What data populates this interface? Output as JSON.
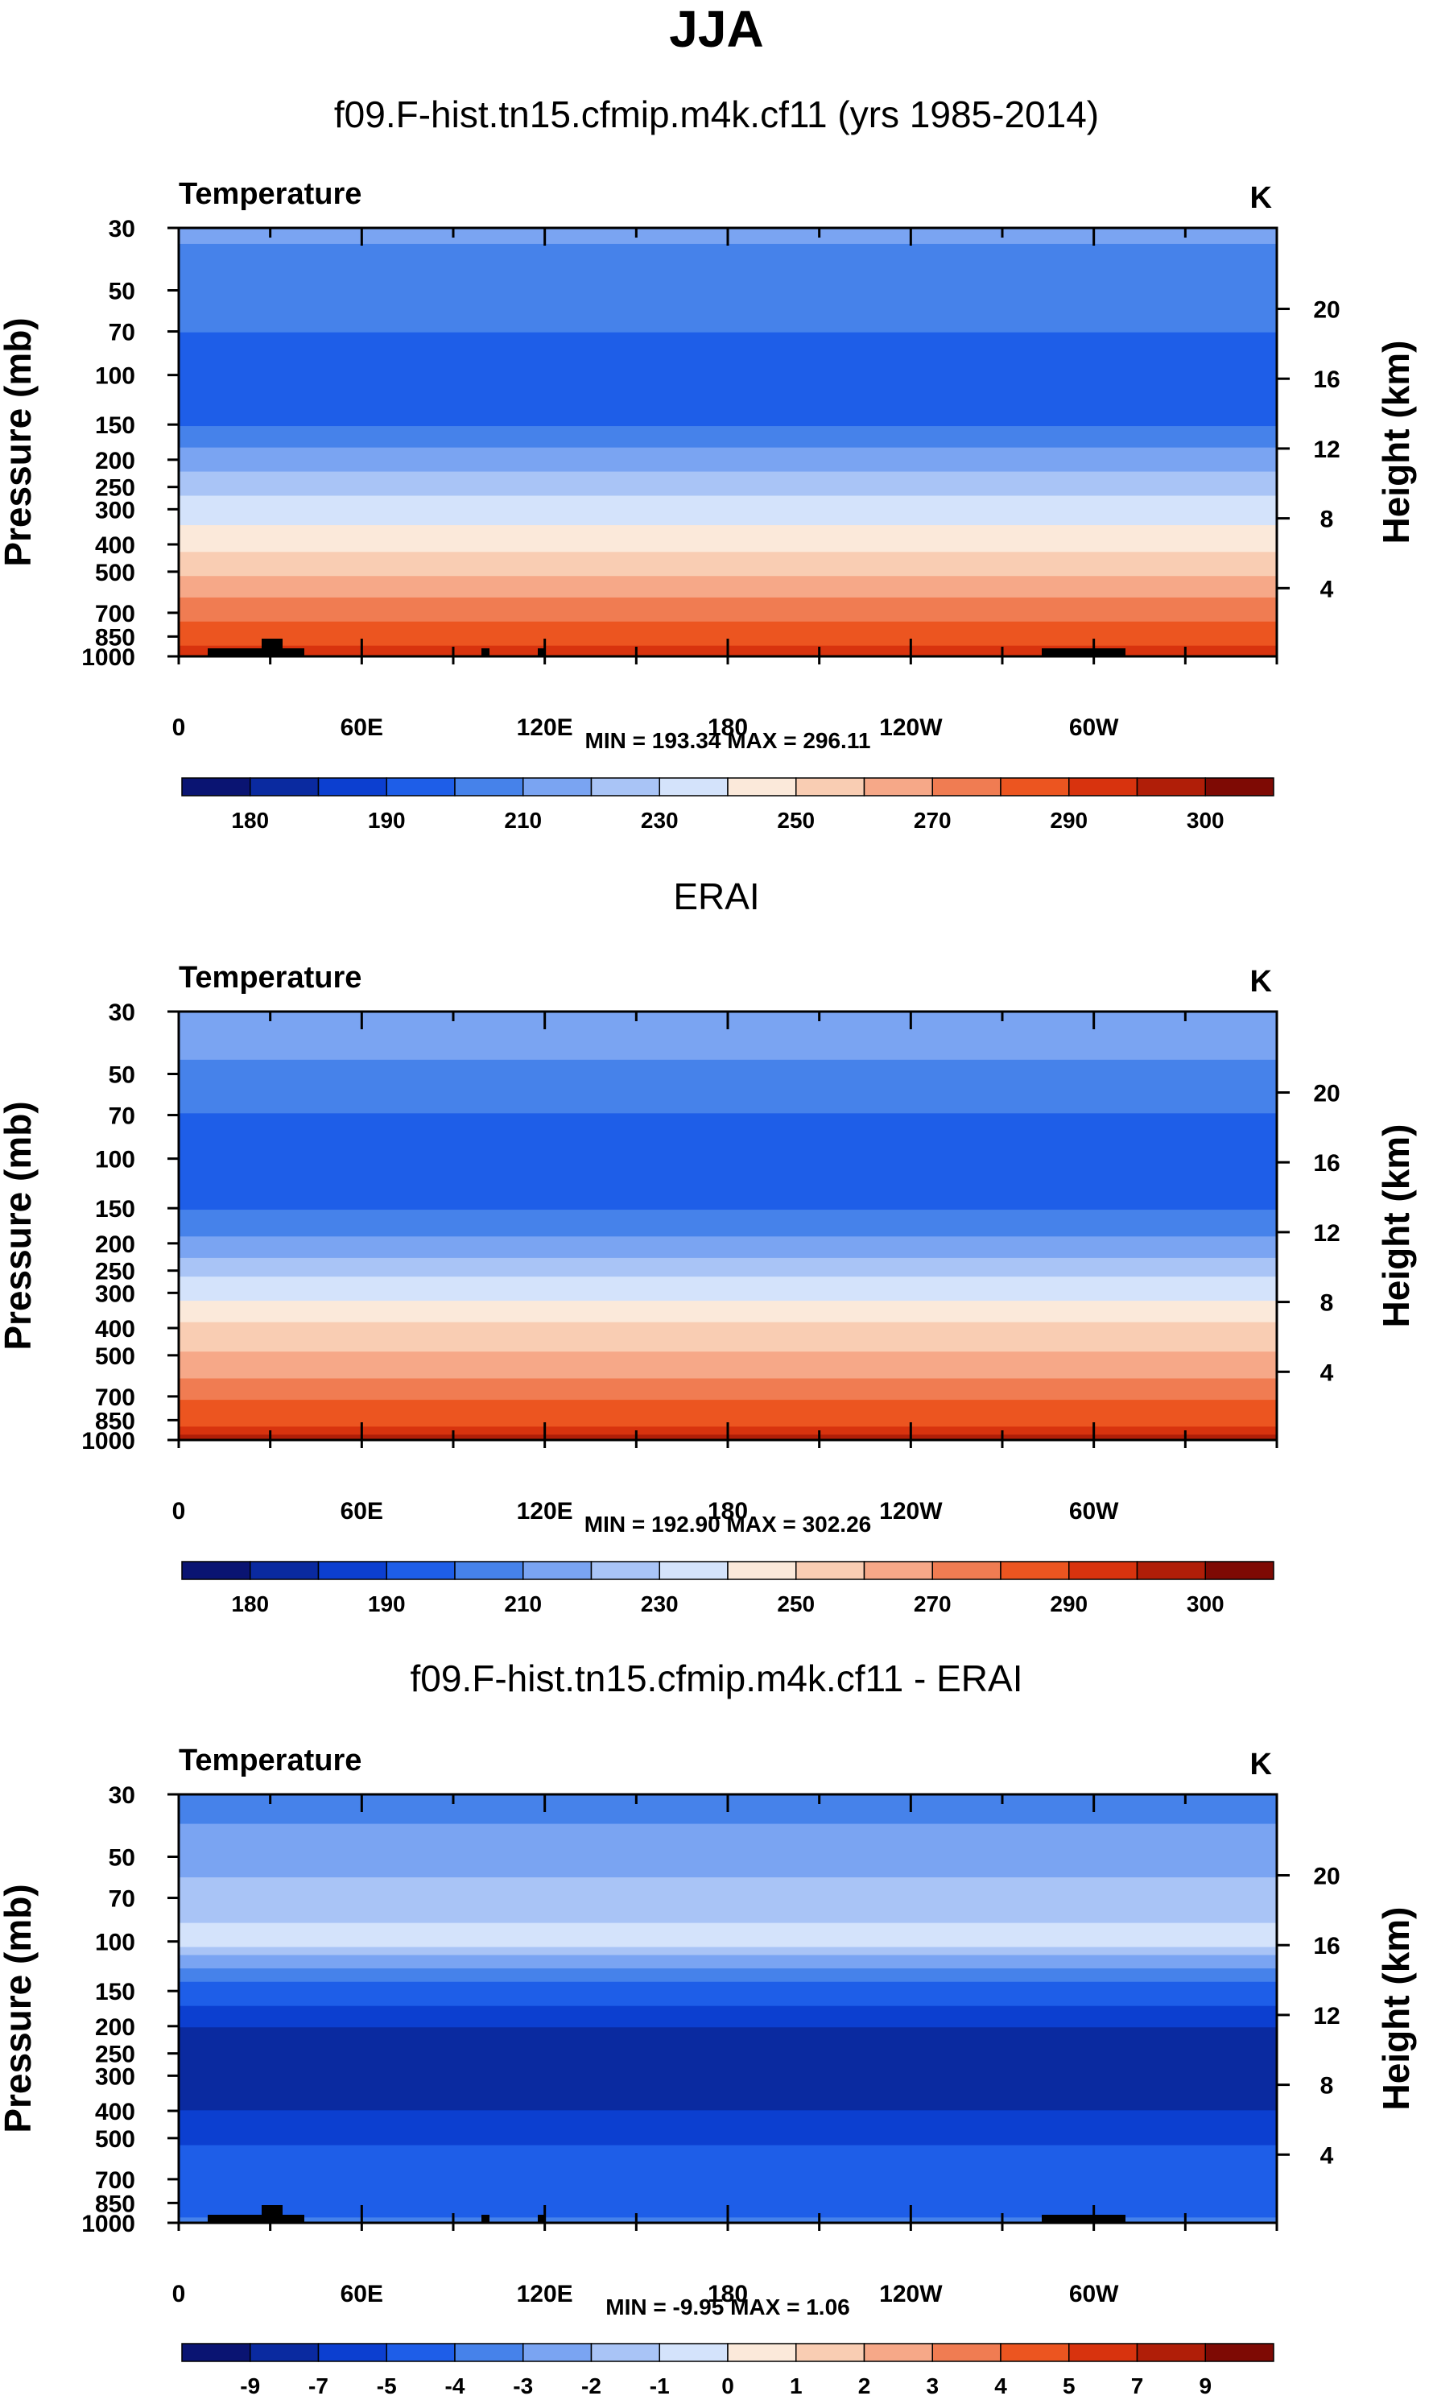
{
  "figure_title": "JJA",
  "chart_data": [
    {
      "type": "heatmap",
      "panel_title": "f09.F-hist.tn15.cfmip.m4k.cf11 (yrs 1985-2014)",
      "variable": "Temperature",
      "units": "K",
      "ylabel": "Pressure (mb)",
      "ylabel_right": "Height (km)",
      "pressure_ticks": [
        "30",
        "50",
        "70",
        "100",
        "150",
        "200",
        "250",
        "300",
        "400",
        "500",
        "700",
        "850",
        "1000"
      ],
      "height_ticks": [
        "20",
        "16",
        "12",
        "8",
        "4"
      ],
      "x_ticks": [
        "0",
        "60E",
        "120E",
        "180",
        "120W",
        "60W"
      ],
      "min_max": "MIN = 193.34   MAX = 296.11",
      "colorbar_labels": [
        "180",
        "190",
        "210",
        "230",
        "250",
        "270",
        "290",
        "300"
      ],
      "colorbar_levels": [
        180,
        185,
        190,
        200,
        210,
        220,
        230,
        240,
        250,
        260,
        270,
        280,
        290,
        295,
        300
      ],
      "profile": [
        [
          30,
          212
        ],
        [
          40,
          207
        ],
        [
          60,
          205
        ],
        [
          80,
          195
        ],
        [
          120,
          193.5
        ],
        [
          160,
          202
        ],
        [
          190,
          214
        ],
        [
          230,
          222
        ],
        [
          270,
          231
        ],
        [
          320,
          238
        ],
        [
          380,
          246
        ],
        [
          460,
          254
        ],
        [
          560,
          265
        ],
        [
          650,
          273
        ],
        [
          750,
          280
        ],
        [
          830,
          285
        ],
        [
          900,
          289
        ],
        [
          960,
          293
        ],
        [
          1000,
          296
        ]
      ],
      "terrain": true
    },
    {
      "type": "heatmap",
      "panel_title": "ERAI",
      "variable": "Temperature",
      "units": "K",
      "ylabel": "Pressure (mb)",
      "ylabel_right": "Height (km)",
      "pressure_ticks": [
        "30",
        "50",
        "70",
        "100",
        "150",
        "200",
        "250",
        "300",
        "400",
        "500",
        "700",
        "850",
        "1000"
      ],
      "height_ticks": [
        "20",
        "16",
        "12",
        "8",
        "4"
      ],
      "x_ticks": [
        "0",
        "60E",
        "120E",
        "180",
        "120W",
        "60W"
      ],
      "min_max": "MIN = 192.90   MAX = 302.26",
      "colorbar_labels": [
        "180",
        "190",
        "210",
        "230",
        "250",
        "270",
        "290",
        "300"
      ],
      "colorbar_levels": [
        180,
        185,
        190,
        200,
        210,
        220,
        230,
        240,
        250,
        260,
        270,
        280,
        290,
        295,
        300
      ],
      "profile": [
        [
          30,
          214
        ],
        [
          40,
          212
        ],
        [
          55,
          205
        ],
        [
          75,
          197
        ],
        [
          120,
          194
        ],
        [
          160,
          202
        ],
        [
          195,
          212
        ],
        [
          230,
          222
        ],
        [
          270,
          232
        ],
        [
          320,
          241
        ],
        [
          390,
          252
        ],
        [
          470,
          259
        ],
        [
          560,
          267
        ],
        [
          660,
          276
        ],
        [
          760,
          284
        ],
        [
          850,
          288
        ],
        [
          920,
          292
        ],
        [
          970,
          297
        ],
        [
          1000,
          302
        ]
      ],
      "terrain": false
    },
    {
      "type": "heatmap",
      "panel_title": "f09.F-hist.tn15.cfmip.m4k.cf11 - ERAI",
      "variable": "Temperature",
      "units": "K",
      "ylabel": "Pressure (mb)",
      "ylabel_right": "Height (km)",
      "pressure_ticks": [
        "30",
        "50",
        "70",
        "100",
        "150",
        "200",
        "250",
        "300",
        "400",
        "500",
        "700",
        "850",
        "1000"
      ],
      "height_ticks": [
        "20",
        "16",
        "12",
        "8",
        "4"
      ],
      "x_ticks": [
        "0",
        "60E",
        "120E",
        "180",
        "120W",
        "60W"
      ],
      "min_max": "MIN =  -9.95   MAX =   1.06",
      "colorbar_labels": [
        "-9",
        "-7",
        "-5",
        "-4",
        "-3",
        "-2",
        "-1",
        "0",
        "1",
        "2",
        "3",
        "4",
        "5",
        "7",
        "9"
      ],
      "colorbar_levels": [
        -10,
        -8,
        -6,
        -4.5,
        -3.5,
        -2.5,
        -1.5,
        -0.5,
        0.5,
        1.5,
        2.5,
        3.5,
        4.5,
        6,
        8
      ],
      "profile": [
        [
          30,
          -3.8
        ],
        [
          45,
          -3.2
        ],
        [
          60,
          -2.4
        ],
        [
          80,
          -1.6
        ],
        [
          100,
          -1.2
        ],
        [
          112,
          -2.6
        ],
        [
          130,
          -4.2
        ],
        [
          160,
          -5.6
        ],
        [
          190,
          -7.4
        ],
        [
          240,
          -10
        ],
        [
          320,
          -10
        ],
        [
          420,
          -7.2
        ],
        [
          500,
          -6.2
        ],
        [
          640,
          -5.2
        ],
        [
          780,
          -4.6
        ],
        [
          900,
          -4.6
        ],
        [
          1000,
          -4.4
        ]
      ],
      "terrain": true
    }
  ]
}
